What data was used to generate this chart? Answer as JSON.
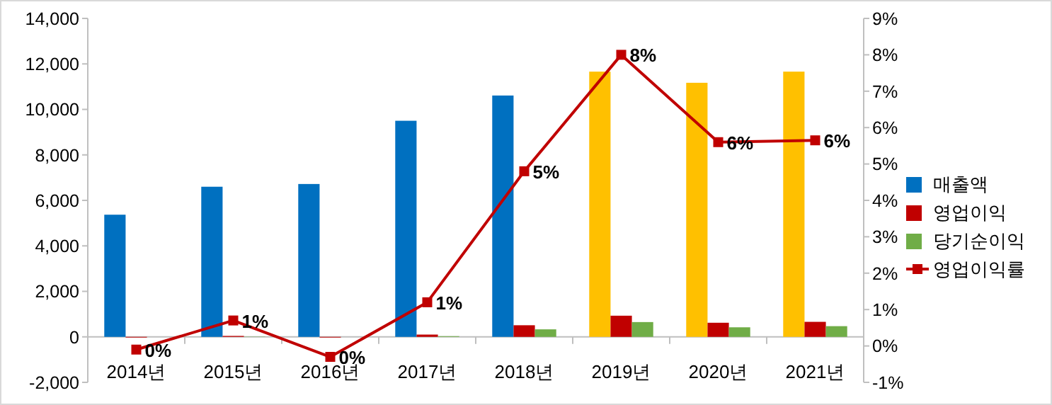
{
  "chart_data": {
    "type": "bar",
    "categories": [
      "2014년",
      "2015년",
      "2016년",
      "2017년",
      "2018년",
      "2019년",
      "2020년",
      "2021년"
    ],
    "series": [
      {
        "name": "매출액",
        "color": "#0070c0",
        "colors": [
          "#0070c0",
          "#0070c0",
          "#0070c0",
          "#0070c0",
          "#0070c0",
          "#ffc000",
          "#ffc000",
          "#ffc000"
        ],
        "values": [
          5370,
          6600,
          6720,
          9500,
          10610,
          11660,
          11170,
          11660
        ]
      },
      {
        "name": "영업이익",
        "color": "#c00000",
        "values": [
          -30,
          40,
          -30,
          100,
          510,
          930,
          620,
          660
        ]
      },
      {
        "name": "당기순이익",
        "color": "#70ad47",
        "values": [
          null,
          10,
          null,
          30,
          330,
          650,
          420,
          470
        ]
      },
      {
        "name": "영업이익률",
        "type": "line",
        "axis": "y2",
        "color": "#c00000",
        "marker": "square",
        "values": [
          -0.1,
          0.7,
          -0.3,
          1.2,
          4.8,
          8.0,
          5.6,
          5.65
        ],
        "value_labels": [
          "0%",
          "1%",
          "0%",
          "1%",
          "5%",
          "8%",
          "6%",
          "6%"
        ]
      }
    ],
    "ylim": [
      -2000,
      14000
    ],
    "yticks": [
      {
        "value": -2000,
        "label": "-2,000"
      },
      0,
      {
        "value": 2000,
        "label": "2,000"
      },
      {
        "value": 4000,
        "label": "4,000"
      },
      {
        "value": 6000,
        "label": "6,000"
      },
      {
        "value": 8000,
        "label": "8,000"
      },
      {
        "value": 10000,
        "label": "10,000"
      },
      {
        "value": 12000,
        "label": "12,000"
      },
      {
        "value": 14000,
        "label": "14,000"
      }
    ],
    "y2lim": [
      -1,
      9
    ],
    "y2ticks": [
      {
        "value": -1,
        "label": "-1%"
      },
      {
        "value": 0,
        "label": "0%"
      },
      {
        "value": 1,
        "label": "1%"
      },
      {
        "value": 2,
        "label": "2%"
      },
      {
        "value": 3,
        "label": "3%"
      },
      {
        "value": 4,
        "label": "4%"
      },
      {
        "value": 5,
        "label": "5%"
      },
      {
        "value": 6,
        "label": "6%"
      },
      {
        "value": 7,
        "label": "7%"
      },
      {
        "value": 8,
        "label": "8%"
      },
      {
        "value": 9,
        "label": "9%"
      }
    ],
    "legend": "right"
  }
}
